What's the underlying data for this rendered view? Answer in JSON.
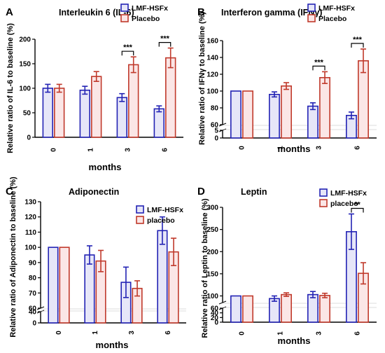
{
  "colors": {
    "lmf": "#2323b4",
    "placebo": "#c0392b",
    "lmf_fill": "#e6e6f8",
    "placebo_fill": "#fbe6e6"
  },
  "chart_data": [
    {
      "panel": "A",
      "type": "bar",
      "title": "Interleukin 6 (IL-6)",
      "xlabel": "months",
      "ylabel": "Relative ratio of IL-6 to baseline (%)",
      "categories": [
        "0",
        "1",
        "3",
        "6"
      ],
      "yticks": [
        "0",
        "50",
        "100",
        "150",
        "200"
      ],
      "ylim": [
        0,
        200
      ],
      "legend": "top-right",
      "series": [
        {
          "name": "LMF-HSFx",
          "values": [
            100,
            96,
            81,
            58
          ],
          "errors": [
            8,
            8,
            8,
            6
          ]
        },
        {
          "name": "Placebo",
          "values": [
            100,
            124,
            148,
            162
          ],
          "errors": [
            8,
            10,
            16,
            20
          ]
        }
      ],
      "significance": [
        {
          "category": "3",
          "label": "***"
        },
        {
          "category": "6",
          "label": "***"
        }
      ]
    },
    {
      "panel": "B",
      "type": "bar",
      "title": "Interferon gamma (IFNγ)",
      "xlabel": "months",
      "ylabel": "Relative ratio of IFNγ to baseline (%)",
      "categories": [
        "0",
        "1",
        "3",
        "6"
      ],
      "yticks": [
        "0",
        "5",
        "60",
        "80",
        "100",
        "120",
        "140",
        "160"
      ],
      "ylim": [
        0,
        160
      ],
      "y_break": [
        5,
        60
      ],
      "legend": "top-right",
      "series": [
        {
          "name": "LMF-HSFx",
          "values": [
            100,
            96,
            82,
            71
          ],
          "errors": [
            0,
            3,
            4,
            4
          ]
        },
        {
          "name": "Placebo",
          "values": [
            100,
            106,
            116,
            136
          ],
          "errors": [
            0,
            4,
            7,
            14
          ]
        }
      ],
      "significance": [
        {
          "category": "3",
          "label": "***"
        },
        {
          "category": "6",
          "label": "***"
        }
      ]
    },
    {
      "panel": "C",
      "type": "bar",
      "title": "Adiponectin",
      "xlabel": "months",
      "ylabel": "Relative ratio of Adiponectin to baseline (%)",
      "categories": [
        "0",
        "1",
        "3",
        "6"
      ],
      "yticks": [
        "0",
        "40",
        "60",
        "70",
        "80",
        "90",
        "100",
        "110",
        "120",
        "130"
      ],
      "ylim": [
        0,
        130
      ],
      "y_break": [
        40,
        60
      ],
      "legend": "top-right",
      "series": [
        {
          "name": "LMF-HSFx",
          "values": [
            100,
            95,
            77,
            111
          ],
          "errors": [
            0,
            6,
            10,
            9
          ]
        },
        {
          "name": "placebo",
          "values": [
            100,
            91,
            73,
            97
          ],
          "errors": [
            0,
            7,
            5,
            9
          ]
        }
      ],
      "significance": []
    },
    {
      "panel": "D",
      "type": "bar",
      "title": "Leptin",
      "xlabel": "months",
      "ylabel": "Relative ratio of Leptin to baseline (%)",
      "categories": [
        "0",
        "1",
        "3",
        "6"
      ],
      "yticks": [
        "0",
        "20",
        "40",
        "60",
        "100",
        "150",
        "200",
        "250",
        "300"
      ],
      "ylim": [
        0,
        300
      ],
      "y_break": [
        60,
        85
      ],
      "legend": "top-right",
      "series": [
        {
          "name": "LMF-HSFx",
          "values": [
            100,
            94,
            103,
            245
          ],
          "errors": [
            0,
            6,
            7,
            40
          ]
        },
        {
          "name": "placebo",
          "values": [
            100,
            103,
            101,
            151
          ],
          "errors": [
            0,
            4,
            5,
            24
          ]
        }
      ],
      "significance": [
        {
          "category": "6",
          "label": "**"
        }
      ]
    }
  ]
}
